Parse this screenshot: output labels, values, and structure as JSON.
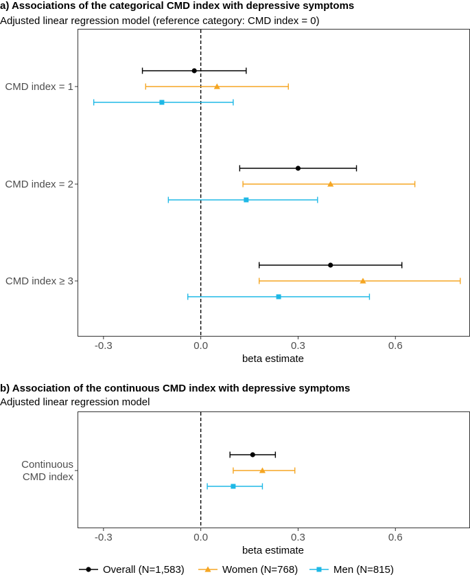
{
  "colors": {
    "overall": "#000000",
    "women": "#F5A623",
    "men": "#1EB8E6",
    "panel_border": "#333333",
    "refline": "#000000"
  },
  "chart_data": [
    {
      "type": "forest",
      "title": "a) Associations of the categorical CMD index with depressive symptoms",
      "subtitle": "Adjusted linear regression model (reference category: CMD index = 0)",
      "xlabel": "beta estimate",
      "xlim": [
        -0.38,
        0.83
      ],
      "xticks": [
        -0.3,
        0.0,
        0.3,
        0.6
      ],
      "xtick_labels": [
        "-0.3",
        "0.0",
        "0.3",
        "0.6"
      ],
      "reference_line": 0,
      "categories": [
        "CMD index = 1",
        "CMD index = 2",
        "CMD index ≥ 3"
      ],
      "series": [
        {
          "name": "Overall (N=1,583)",
          "key": "overall",
          "marker": "circle",
          "estimates": [
            -0.02,
            0.3,
            0.4
          ],
          "lower": [
            -0.18,
            0.12,
            0.18
          ],
          "upper": [
            0.14,
            0.48,
            0.62
          ]
        },
        {
          "name": "Women (N=768)",
          "key": "women",
          "marker": "triangle",
          "estimates": [
            0.05,
            0.4,
            0.5
          ],
          "lower": [
            -0.17,
            0.13,
            0.18
          ],
          "upper": [
            0.27,
            0.66,
            0.8
          ]
        },
        {
          "name": "Men (N=815)",
          "key": "men",
          "marker": "square",
          "estimates": [
            -0.12,
            0.14,
            0.24
          ],
          "lower": [
            -0.33,
            -0.1,
            -0.04
          ],
          "upper": [
            0.1,
            0.36,
            0.52
          ]
        }
      ]
    },
    {
      "type": "forest",
      "title": "b) Association of the continuous CMD index with depressive symptoms",
      "subtitle": "Adjusted linear regression model",
      "xlabel": "beta estimate",
      "xlim": [
        -0.38,
        0.83
      ],
      "xticks": [
        -0.3,
        0.0,
        0.3,
        0.6
      ],
      "xtick_labels": [
        "-0.3",
        "0.0",
        "0.3",
        "0.6"
      ],
      "reference_line": 0,
      "categories": [
        "Continuous\nCMD index"
      ],
      "series": [
        {
          "name": "Overall (N=1,583)",
          "key": "overall",
          "marker": "circle",
          "estimates": [
            0.16
          ],
          "lower": [
            0.09
          ],
          "upper": [
            0.23
          ]
        },
        {
          "name": "Women (N=768)",
          "key": "women",
          "marker": "triangle",
          "estimates": [
            0.19
          ],
          "lower": [
            0.1
          ],
          "upper": [
            0.29
          ]
        },
        {
          "name": "Men (N=815)",
          "key": "men",
          "marker": "square",
          "estimates": [
            0.1
          ],
          "lower": [
            0.02
          ],
          "upper": [
            0.19
          ]
        }
      ]
    }
  ],
  "legend": {
    "position": "bottom",
    "items": [
      {
        "label": "Overall (N=1,583)",
        "key": "overall",
        "marker": "circle"
      },
      {
        "label": "Women (N=768)",
        "key": "women",
        "marker": "triangle"
      },
      {
        "label": "Men (N=815)",
        "key": "men",
        "marker": "square"
      }
    ]
  }
}
